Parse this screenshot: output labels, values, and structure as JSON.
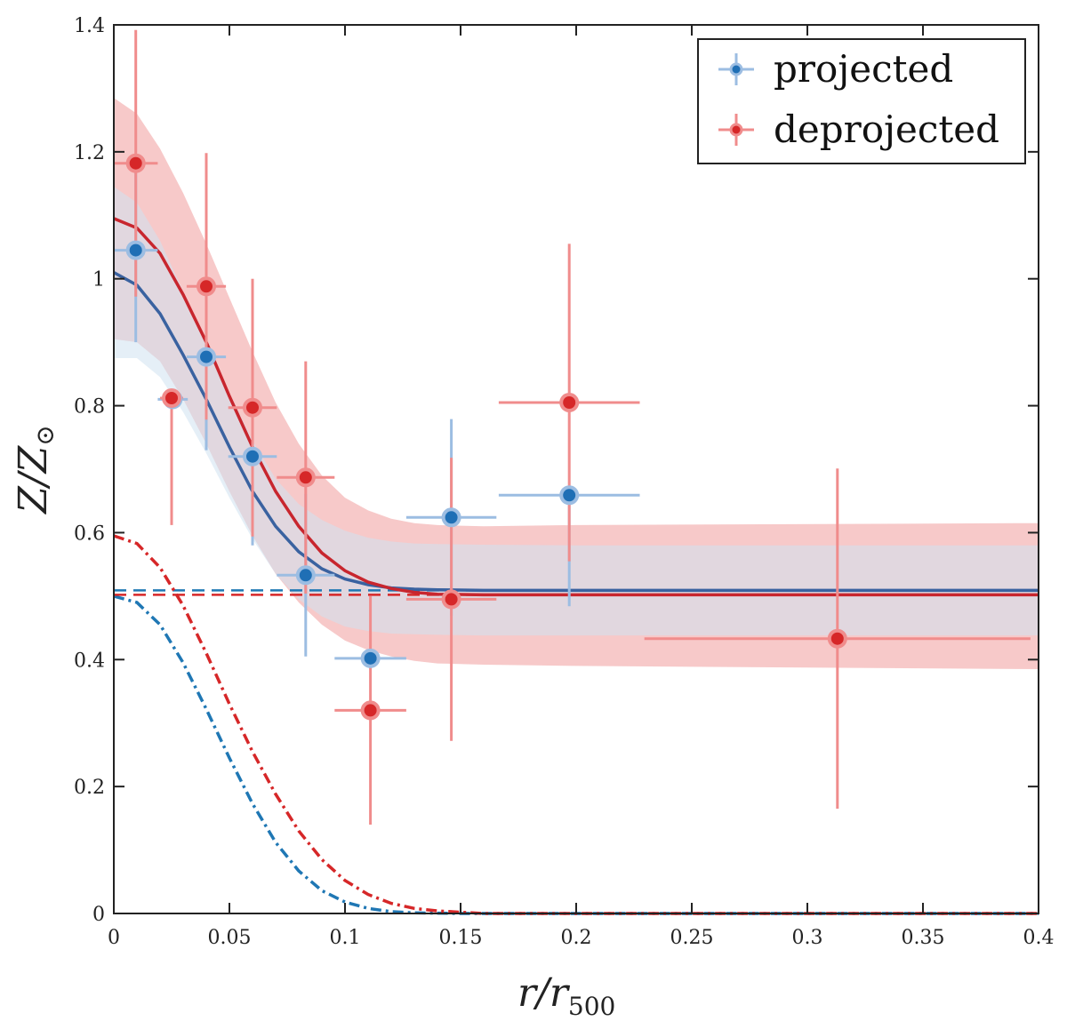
{
  "chart_data": {
    "type": "scatter",
    "title": "",
    "xlabel": "r/r",
    "xlabel_sub": "500",
    "ylabel": "Z/Z",
    "ylabel_sub": "⊙",
    "xlim": [
      0,
      0.4
    ],
    "ylim": [
      0,
      1.4
    ],
    "grid": false,
    "legend_position": "top-right",
    "x_ticks": [
      "0",
      "0.05",
      "0.1",
      "0.15",
      "0.2",
      "0.25",
      "0.3",
      "0.35",
      "0.4"
    ],
    "y_ticks": [
      "0",
      "0.2",
      "0.4",
      "0.6",
      "0.8",
      "1",
      "1.2",
      "1.4"
    ],
    "colors": {
      "projected_point": "#1f6fb5",
      "projected_err": "#9cbde2",
      "projected_band": "#cfe2f1",
      "projected_line": "#3a62a0",
      "projected_core": "#1f77b4",
      "deprojected_point": "#d62728",
      "deprojected_err": "#f08c8c",
      "deprojected_band": "#f4b7b7",
      "deprojected_line": "#c8262e",
      "deprojected_core": "#d62728"
    },
    "series": [
      {
        "name": "projected",
        "points": [
          {
            "x": 0.0095,
            "xerr": 0.0095,
            "y": 1.045,
            "yerr_lo": 0.145,
            "yerr_hi": 0.145
          },
          {
            "x": 0.0255,
            "xerr": 0.0065,
            "y": 0.81,
            "yerr_lo": 0.0,
            "yerr_hi": 0.0
          },
          {
            "x": 0.04,
            "xerr": 0.0085,
            "y": 0.877,
            "yerr_lo": 0.147,
            "yerr_hi": 0.147
          },
          {
            "x": 0.06,
            "xerr": 0.0105,
            "y": 0.72,
            "yerr_lo": 0.14,
            "yerr_hi": 0.14
          },
          {
            "x": 0.083,
            "xerr": 0.0125,
            "y": 0.533,
            "yerr_lo": 0.128,
            "yerr_hi": 0.128
          },
          {
            "x": 0.111,
            "xerr": 0.0155,
            "y": 0.402,
            "yerr_lo": 0.0,
            "yerr_hi": 0.0
          },
          {
            "x": 0.146,
            "xerr": 0.0195,
            "y": 0.624,
            "yerr_lo": 0.155,
            "yerr_hi": 0.155
          },
          {
            "x": 0.197,
            "xerr": 0.0305,
            "y": 0.659,
            "yerr_lo": 0.175,
            "yerr_hi": 0.0
          }
        ],
        "fit": {
          "x": [
            0,
            0.01,
            0.02,
            0.03,
            0.04,
            0.05,
            0.06,
            0.07,
            0.08,
            0.09,
            0.1,
            0.11,
            0.12,
            0.13,
            0.14,
            0.16,
            0.2,
            0.4
          ],
          "y": [
            1.01,
            0.99,
            0.945,
            0.88,
            0.81,
            0.735,
            0.665,
            0.61,
            0.57,
            0.543,
            0.527,
            0.518,
            0.513,
            0.511,
            0.51,
            0.509,
            0.509,
            0.509
          ],
          "band_lo": [
            0.875,
            0.875,
            0.845,
            0.79,
            0.725,
            0.655,
            0.59,
            0.535,
            0.495,
            0.468,
            0.452,
            0.445,
            0.441,
            0.44,
            0.439,
            0.438,
            0.438,
            0.438
          ],
          "band_hi": [
            1.145,
            1.12,
            1.06,
            0.98,
            0.9,
            0.82,
            0.745,
            0.685,
            0.645,
            0.62,
            0.603,
            0.592,
            0.586,
            0.583,
            0.582,
            0.581,
            0.58,
            0.58
          ]
        },
        "asymptote": 0.509,
        "core": {
          "x": [
            0,
            0.01,
            0.02,
            0.03,
            0.04,
            0.05,
            0.06,
            0.07,
            0.08,
            0.09,
            0.1,
            0.11,
            0.12,
            0.13,
            0.15,
            0.2,
            0.4
          ],
          "y": [
            0.5,
            0.49,
            0.455,
            0.395,
            0.322,
            0.245,
            0.173,
            0.112,
            0.067,
            0.036,
            0.018,
            0.008,
            0.003,
            0.001,
            0.0,
            0.0,
            0.0
          ]
        }
      },
      {
        "name": "deprojected",
        "points": [
          {
            "x": 0.0095,
            "xerr": 0.0095,
            "y": 1.182,
            "yerr_lo": 0.21,
            "yerr_hi": 0.21
          },
          {
            "x": 0.025,
            "xerr": 0.005,
            "y": 0.812,
            "yerr_lo": 0.2,
            "yerr_hi": 0.0
          },
          {
            "x": 0.04,
            "xerr": 0.0085,
            "y": 0.988,
            "yerr_lo": 0.21,
            "yerr_hi": 0.21
          },
          {
            "x": 0.06,
            "xerr": 0.0105,
            "y": 0.797,
            "yerr_lo": 0.203,
            "yerr_hi": 0.203
          },
          {
            "x": 0.083,
            "xerr": 0.0125,
            "y": 0.687,
            "yerr_lo": 0.183,
            "yerr_hi": 0.183
          },
          {
            "x": 0.111,
            "xerr": 0.0155,
            "y": 0.32,
            "yerr_lo": 0.18,
            "yerr_hi": 0.18
          },
          {
            "x": 0.146,
            "xerr": 0.0195,
            "y": 0.495,
            "yerr_lo": 0.223,
            "yerr_hi": 0.223
          },
          {
            "x": 0.197,
            "xerr": 0.0305,
            "y": 0.805,
            "yerr_lo": 0.25,
            "yerr_hi": 0.25
          },
          {
            "x": 0.313,
            "xerr": 0.0835,
            "y": 0.433,
            "yerr_lo": 0.268,
            "yerr_hi": 0.268
          }
        ],
        "fit": {
          "x": [
            0,
            0.01,
            0.02,
            0.03,
            0.04,
            0.05,
            0.06,
            0.07,
            0.08,
            0.09,
            0.1,
            0.11,
            0.12,
            0.13,
            0.14,
            0.16,
            0.2,
            0.4
          ],
          "y": [
            1.095,
            1.08,
            1.04,
            0.975,
            0.9,
            0.815,
            0.735,
            0.665,
            0.61,
            0.568,
            0.54,
            0.522,
            0.512,
            0.506,
            0.503,
            0.502,
            0.502,
            0.502
          ],
          "band_lo": [
            0.905,
            0.9,
            0.87,
            0.81,
            0.74,
            0.665,
            0.595,
            0.535,
            0.49,
            0.455,
            0.43,
            0.415,
            0.405,
            0.398,
            0.394,
            0.392,
            0.39,
            0.385
          ],
          "band_hi": [
            1.285,
            1.26,
            1.205,
            1.135,
            1.055,
            0.97,
            0.885,
            0.805,
            0.74,
            0.69,
            0.655,
            0.635,
            0.622,
            0.615,
            0.612,
            0.61,
            0.612,
            0.615
          ]
        },
        "asymptote": 0.502,
        "core": {
          "x": [
            0,
            0.01,
            0.02,
            0.03,
            0.04,
            0.05,
            0.06,
            0.07,
            0.08,
            0.09,
            0.1,
            0.11,
            0.12,
            0.13,
            0.14,
            0.16,
            0.2,
            0.4
          ],
          "y": [
            0.595,
            0.583,
            0.545,
            0.485,
            0.41,
            0.33,
            0.255,
            0.188,
            0.13,
            0.085,
            0.052,
            0.03,
            0.016,
            0.008,
            0.004,
            0.0,
            0.0,
            0.0
          ]
        }
      }
    ]
  }
}
